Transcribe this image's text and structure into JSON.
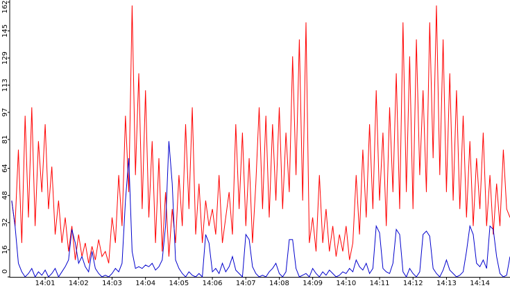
{
  "chart_data": {
    "type": "line",
    "x": [
      0,
      0.1,
      0.2,
      0.3,
      0.4,
      0.5,
      0.6,
      0.7,
      0.8,
      0.9,
      1,
      1.1,
      1.2,
      1.3,
      1.4,
      1.5,
      1.6,
      1.7,
      1.8,
      1.9,
      2,
      2.1,
      2.2,
      2.3,
      2.4,
      2.5,
      2.6,
      2.7,
      2.8,
      2.9,
      3,
      3.1,
      3.2,
      3.3,
      3.4,
      3.5,
      3.6,
      3.7,
      3.8,
      3.9,
      4,
      4.1,
      4.2,
      4.3,
      4.4,
      4.5,
      4.6,
      4.7,
      4.8,
      4.9,
      5,
      5.1,
      5.2,
      5.3,
      5.4,
      5.5,
      5.6,
      5.7,
      5.8,
      5.9,
      6,
      6.1,
      6.2,
      6.3,
      6.4,
      6.5,
      6.6,
      6.7,
      6.8,
      6.9,
      7,
      7.1,
      7.2,
      7.3,
      7.4,
      7.5,
      7.6,
      7.7,
      7.8,
      7.9,
      8,
      8.1,
      8.2,
      8.3,
      8.4,
      8.5,
      8.6,
      8.7,
      8.8,
      8.9,
      9,
      9.1,
      9.2,
      9.3,
      9.4,
      9.5,
      9.6,
      9.7,
      9.8,
      9.9,
      10,
      10.1,
      10.2,
      10.3,
      10.4,
      10.5,
      10.6,
      10.7,
      10.8,
      10.9,
      11,
      11.1,
      11.2,
      11.3,
      11.4,
      11.5,
      11.6,
      11.7,
      11.8,
      11.9,
      12,
      12.1,
      12.2,
      12.3,
      12.4,
      12.5,
      12.6,
      12.7,
      12.8,
      12.9,
      13,
      13.1,
      13.2,
      13.3,
      13.4,
      13.5,
      13.6,
      13.7,
      13.8,
      13.9,
      14,
      14.1,
      14.2,
      14.3,
      14.4,
      14.5,
      14.6,
      14.7,
      14.8,
      14.9
    ],
    "series": [
      {
        "color": "#ff0000",
        "values": [
          45,
          30,
          75,
          20,
          95,
          35,
          100,
          30,
          80,
          50,
          90,
          40,
          65,
          25,
          45,
          20,
          35,
          15,
          30,
          10,
          25,
          12,
          20,
          8,
          18,
          10,
          22,
          12,
          15,
          8,
          35,
          20,
          60,
          30,
          95,
          50,
          160,
          60,
          120,
          40,
          110,
          35,
          80,
          20,
          70,
          15,
          50,
          12,
          40,
          20,
          60,
          30,
          90,
          40,
          100,
          25,
          55,
          20,
          45,
          30,
          40,
          25,
          60,
          20,
          35,
          50,
          25,
          90,
          40,
          85,
          30,
          70,
          20,
          55,
          100,
          40,
          95,
          35,
          90,
          45,
          100,
          40,
          85,
          50,
          130,
          60,
          140,
          45,
          150,
          20,
          35,
          15,
          60,
          20,
          40,
          15,
          30,
          12,
          25,
          15,
          30,
          10,
          20,
          60,
          25,
          75,
          35,
          90,
          40,
          110,
          45,
          85,
          30,
          100,
          50,
          120,
          40,
          150,
          50,
          130,
          40,
          140,
          60,
          110,
          50,
          150,
          70,
          160,
          60,
          140,
          50,
          120,
          45,
          110,
          40,
          95,
          35,
          80,
          30,
          70,
          40,
          85,
          30,
          60,
          25,
          55,
          30,
          75,
          40,
          35
        ]
      },
      {
        "color": "#0000cc",
        "values": [
          45,
          30,
          8,
          3,
          0,
          2,
          5,
          0,
          3,
          1,
          4,
          0,
          2,
          5,
          0,
          3,
          6,
          10,
          28,
          20,
          8,
          12,
          6,
          3,
          15,
          5,
          2,
          0,
          1,
          0,
          2,
          5,
          3,
          8,
          45,
          70,
          15,
          5,
          6,
          5,
          7,
          6,
          8,
          4,
          6,
          10,
          30,
          80,
          55,
          10,
          5,
          2,
          0,
          3,
          1,
          0,
          2,
          0,
          25,
          20,
          3,
          5,
          2,
          8,
          3,
          6,
          12,
          4,
          2,
          0,
          25,
          22,
          6,
          2,
          0,
          1,
          0,
          3,
          5,
          8,
          2,
          0,
          3,
          22,
          22,
          5,
          0,
          1,
          2,
          0,
          5,
          2,
          0,
          3,
          1,
          4,
          2,
          0,
          1,
          3,
          2,
          5,
          3,
          10,
          6,
          4,
          8,
          2,
          5,
          30,
          26,
          5,
          3,
          2,
          8,
          28,
          25,
          3,
          0,
          5,
          2,
          0,
          3,
          25,
          27,
          24,
          5,
          2,
          0,
          4,
          10,
          4,
          2,
          0,
          1,
          3,
          15,
          30,
          25,
          8,
          6,
          10,
          5,
          30,
          28,
          12,
          2,
          0,
          1,
          12
        ]
      }
    ],
    "xlim": [
      -0.06,
      14.9
    ],
    "xticks": [
      {
        "value": 1,
        "label": "14:01"
      },
      {
        "value": 2,
        "label": "14:02"
      },
      {
        "value": 3,
        "label": "14:03"
      },
      {
        "value": 4,
        "label": "14:04"
      },
      {
        "value": 5,
        "label": "14:05"
      },
      {
        "value": 6,
        "label": "14:06"
      },
      {
        "value": 7,
        "label": "14:07"
      },
      {
        "value": 8,
        "label": "14:08"
      },
      {
        "value": 9,
        "label": "14:09"
      },
      {
        "value": 10,
        "label": "14:10"
      },
      {
        "value": 11,
        "label": "14:11"
      },
      {
        "value": 12,
        "label": "14:12"
      },
      {
        "value": 13,
        "label": "14:13"
      },
      {
        "value": 14,
        "label": "14:14"
      }
    ],
    "ylim": [
      0,
      162
    ],
    "yticks": [
      0,
      16,
      32,
      48,
      64,
      81,
      97,
      113,
      129,
      145,
      162
    ]
  }
}
